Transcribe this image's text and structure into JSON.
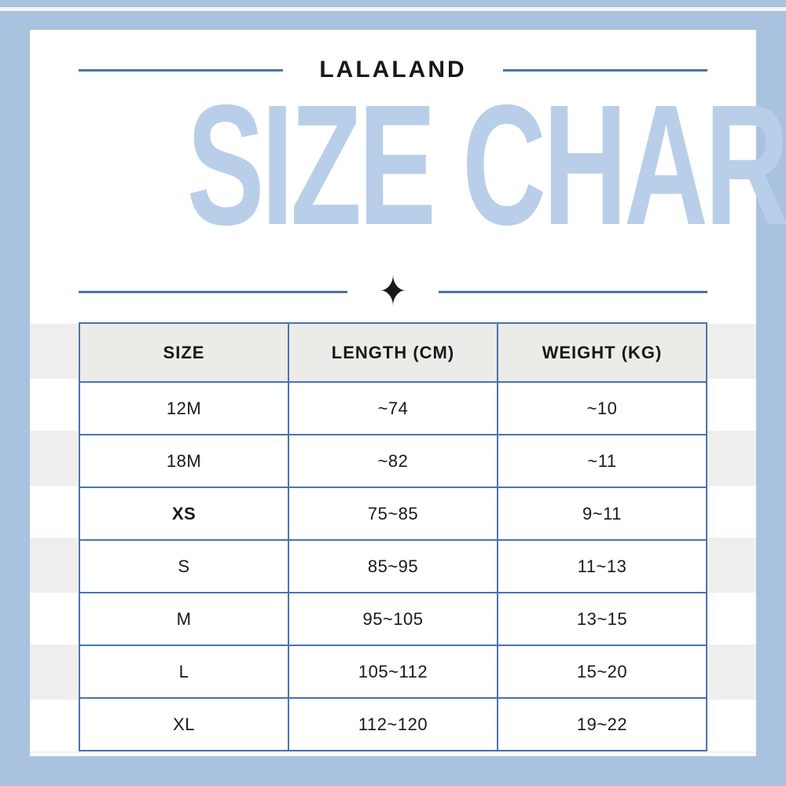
{
  "brand": {
    "name": "LALALAND"
  },
  "title": {
    "text": "SIZE CHART"
  },
  "divider": {
    "star_icon": "✦"
  },
  "colors": {
    "frame_blue": "#a8c2e0",
    "accent_blue": "#4a73ae",
    "title_light_blue": "#b9cee9",
    "header_gray": "#ebebe8",
    "stripe_gray": "#efeeec",
    "text": "#17181c"
  },
  "chart_data": {
    "type": "table",
    "title": "SIZE CHART",
    "subtitle": "LALALAND",
    "columns": [
      "SIZE",
      "LENGTH (CM)",
      "WEIGHT (KG)"
    ],
    "rows": [
      [
        "12M",
        "~74",
        "~10"
      ],
      [
        "18M",
        "~82",
        "~11"
      ],
      [
        "XS",
        "75~85",
        "9~11"
      ],
      [
        "S",
        "85~95",
        "11~13"
      ],
      [
        "M",
        "95~105",
        "13~15"
      ],
      [
        "L",
        "105~112",
        "15~20"
      ],
      [
        "XL",
        "112~120",
        "19~22"
      ]
    ],
    "emphasized_rows": [
      2
    ]
  }
}
